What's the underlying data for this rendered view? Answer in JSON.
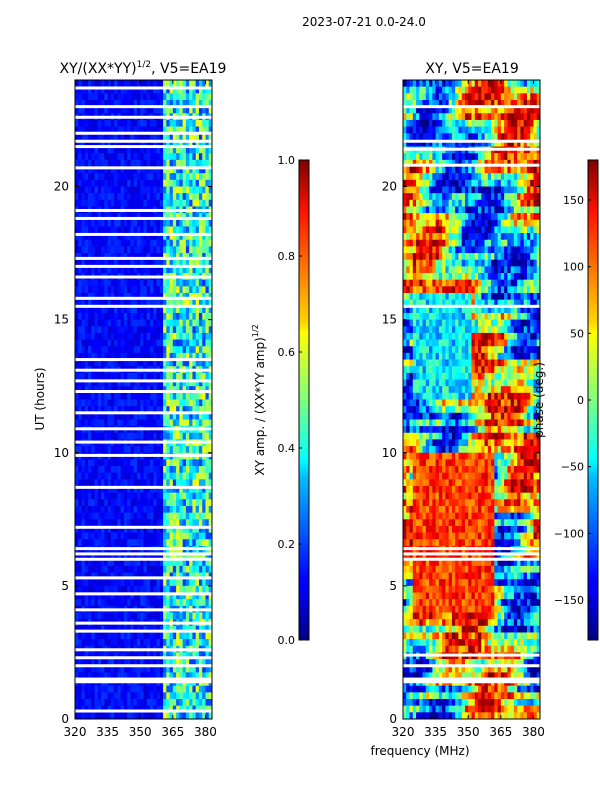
{
  "figure": {
    "suptitle": "2023-07-21 0.0-24.0",
    "xlabel": "frequency (MHz)"
  },
  "chart_data": [
    {
      "type": "heatmap",
      "title": "XY/(XX*YY)",
      "title_exp": "1/2",
      "title_suffix": ", V5=EA19",
      "xlabel": "frequency (MHz)",
      "ylabel": "UT (hours)",
      "xlim": [
        320,
        383
      ],
      "ylim": [
        0,
        24
      ],
      "xticks": [
        320,
        335,
        350,
        365,
        380
      ],
      "yticks": [
        0,
        5,
        10,
        15,
        20
      ],
      "colorbar": {
        "label": "XY amp. / (XX*YY amp)",
        "label_exp": "1/2",
        "range": [
          0.0,
          1.0
        ],
        "ticks": [
          "0.0",
          "0.2",
          "0.4",
          "0.6",
          "0.8",
          "1.0"
        ],
        "colormap": "jet"
      },
      "features": {
        "low_band": [
          320,
          360
        ],
        "low_band_level": 0.08,
        "high_band": [
          360,
          383
        ],
        "high_band_level": 0.5,
        "flagged_utc_hours": [
          0.3,
          1.4,
          1.5,
          2.0,
          2.3,
          2.6,
          3.3,
          3.6,
          4.1,
          4.7,
          5.3,
          6.0,
          6.2,
          6.4,
          7.2,
          8.7,
          9.9,
          10.4,
          10.9,
          11.5,
          12.3,
          12.7,
          13.1,
          13.5,
          15.5,
          15.8,
          16.6,
          17.0,
          17.3,
          18.2,
          18.8,
          19.1,
          20.7,
          21.5,
          21.7,
          22.0,
          22.6,
          23.0,
          23.7
        ]
      }
    },
    {
      "type": "heatmap",
      "title": "XY, V5=EA19",
      "xlabel": "frequency (MHz)",
      "ylabel": "",
      "xlim": [
        320,
        383
      ],
      "ylim": [
        0,
        24
      ],
      "xticks": [
        320,
        335,
        350,
        365,
        380
      ],
      "yticks": [
        0,
        5,
        10,
        15,
        20
      ],
      "colorbar": {
        "label": "phase (deg.)",
        "range": [
          -180,
          180
        ],
        "ticks": [
          "−150",
          "−100",
          "−50",
          "0",
          "50",
          "100",
          "150"
        ],
        "colormap": "jet"
      },
      "features": {
        "flagged_utc_hours": [
          1.4,
          1.5,
          2.0,
          2.4,
          6.0,
          6.2,
          6.4,
          15.5,
          20.8,
          21.4,
          21.7,
          23.0
        ]
      }
    }
  ]
}
